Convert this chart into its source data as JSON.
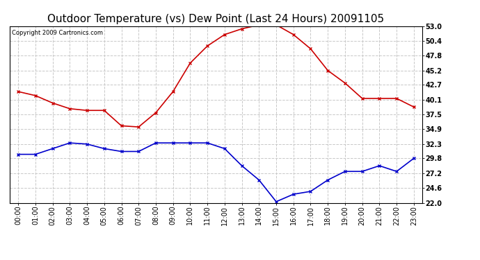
{
  "title": "Outdoor Temperature (vs) Dew Point (Last 24 Hours) 20091105",
  "copyright": "Copyright 2009 Cartronics.com",
  "x_labels": [
    "00:00",
    "01:00",
    "02:00",
    "03:00",
    "04:00",
    "05:00",
    "06:00",
    "07:00",
    "08:00",
    "09:00",
    "10:00",
    "11:00",
    "12:00",
    "13:00",
    "14:00",
    "15:00",
    "16:00",
    "17:00",
    "18:00",
    "19:00",
    "20:00",
    "21:00",
    "22:00",
    "23:00"
  ],
  "temp_data": [
    41.5,
    40.8,
    39.5,
    38.5,
    38.2,
    38.2,
    35.5,
    35.3,
    37.8,
    41.5,
    46.5,
    49.5,
    51.5,
    52.5,
    53.2,
    53.2,
    51.5,
    49.0,
    45.2,
    43.0,
    40.3,
    40.3,
    40.3,
    38.8
  ],
  "dew_data": [
    30.5,
    30.5,
    31.5,
    32.5,
    32.3,
    31.5,
    31.0,
    31.0,
    32.5,
    32.5,
    32.5,
    32.5,
    31.5,
    28.5,
    26.0,
    22.2,
    23.5,
    24.0,
    26.0,
    27.5,
    27.5,
    28.5,
    27.5,
    29.8
  ],
  "temp_color": "#cc0000",
  "dew_color": "#0000cc",
  "fig_bg": "#ffffff",
  "plot_bg": "#ffffff",
  "grid_color": "#c8c8c8",
  "ylim_min": 22.0,
  "ylim_max": 53.0,
  "yticks": [
    22.0,
    24.6,
    27.2,
    29.8,
    32.3,
    34.9,
    37.5,
    40.1,
    42.7,
    45.2,
    47.8,
    50.4,
    53.0
  ],
  "title_fontsize": 11,
  "tick_fontsize": 7,
  "copyright_fontsize": 6,
  "marker": "x",
  "markersize": 3,
  "markeredgewidth": 1.0,
  "linewidth": 1.2
}
